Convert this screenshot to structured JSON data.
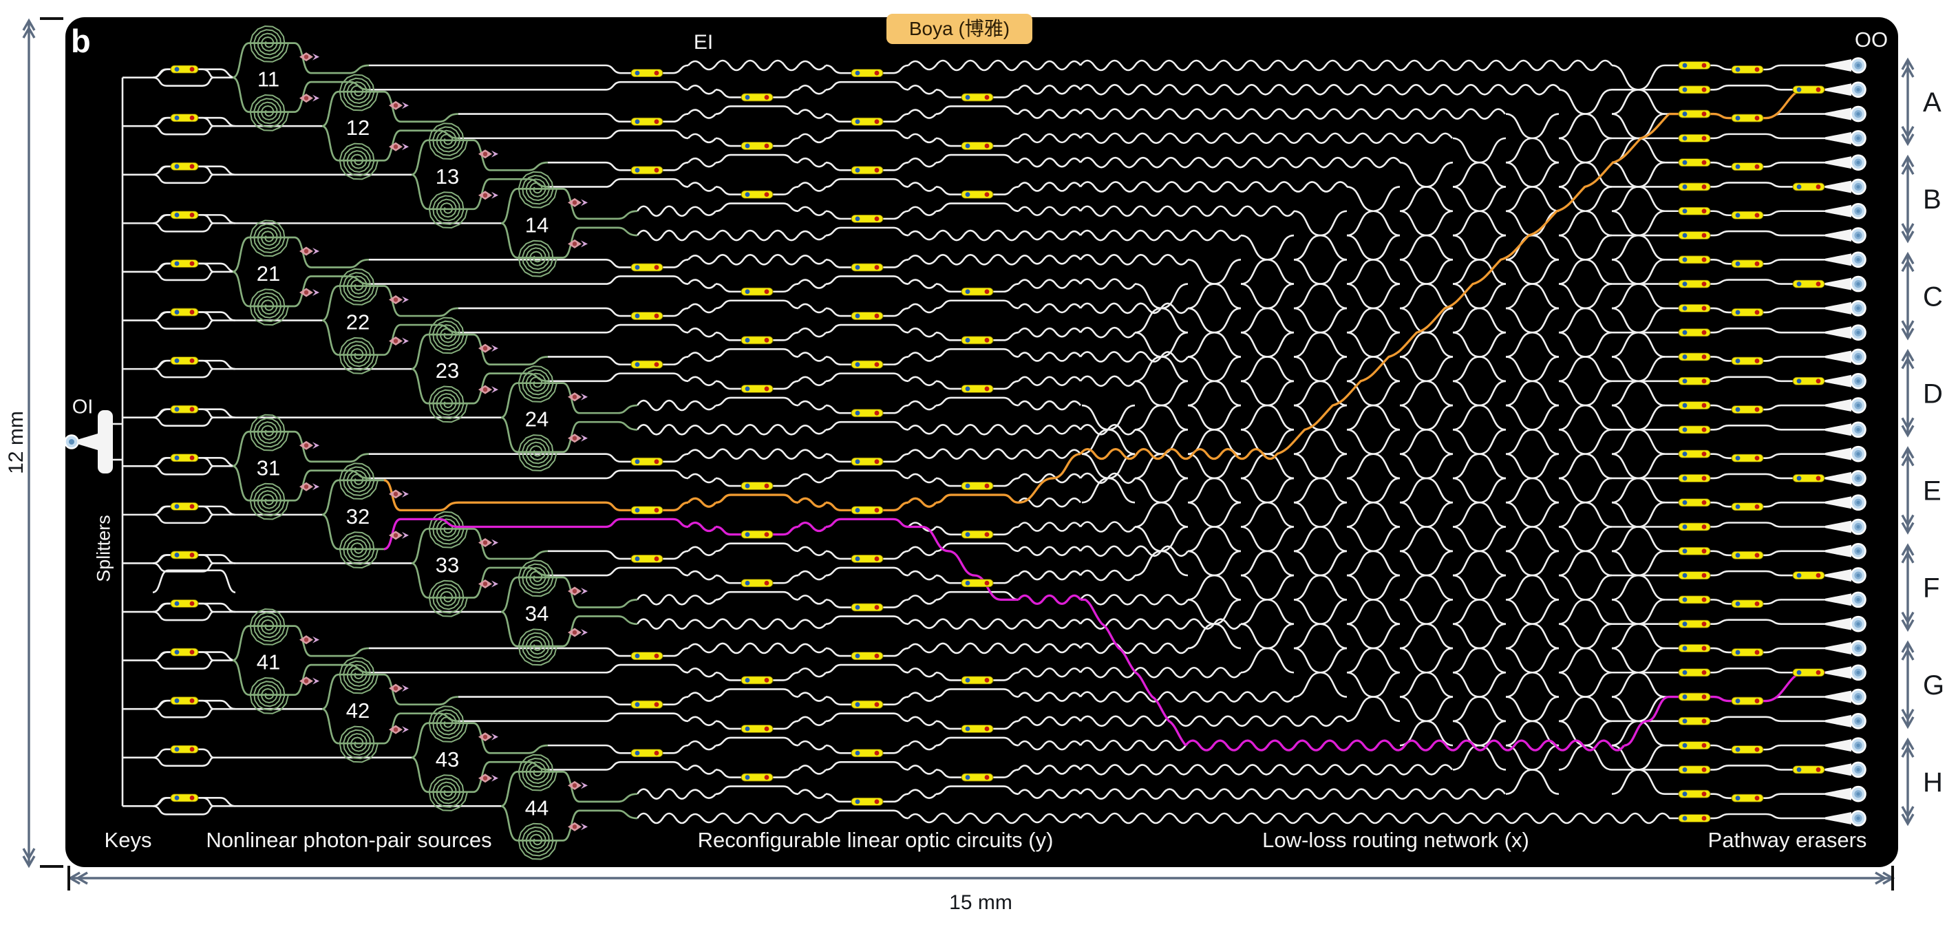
{
  "panel_label": "b",
  "chip_name_badge": "Boya (博雅)",
  "io_labels": {
    "optical_input": "OI",
    "electrical_input": "EI",
    "optical_output": "OO"
  },
  "dimensions": {
    "height_label": "12 mm",
    "width_label": "15 mm"
  },
  "section_labels": {
    "splitters": "Splitters",
    "keys": "Keys",
    "sources": "Nonlinear photon-pair sources",
    "linear_circuits": "Reconfigurable linear optic circuits (y)",
    "routing": "Low-loss routing network (x)",
    "erasers": "Pathway erasers"
  },
  "sources": {
    "numbers": [
      "11",
      "12",
      "13",
      "14",
      "21",
      "22",
      "23",
      "24",
      "31",
      "32",
      "33",
      "34",
      "41",
      "42",
      "43",
      "44"
    ]
  },
  "output_groups": [
    "A",
    "B",
    "C",
    "D",
    "E",
    "F",
    "G",
    "H"
  ],
  "counts": {
    "keys": 16,
    "photon_pair_sources": 16,
    "outputs": 32,
    "outputs_per_group": 4
  },
  "highlighted_paths": [
    {
      "name": "signal-path",
      "color": "#f09a30",
      "from_source": "32",
      "to_output_group": "A"
    },
    {
      "name": "idler-path",
      "color": "#de1ed6",
      "from_source": "32",
      "to_output_group": "G"
    }
  ],
  "colors": {
    "page_bg": "#ffffff",
    "panel_bg": "#000000",
    "waveguide": "#f0f0f0",
    "source_green": "#85ad7c",
    "phase_shifter_yellow": "#f4e90a",
    "phase_shifter_edge": "#7a6a00",
    "contact_blue": "#1f5fae",
    "contact_red": "#c41b0e",
    "photon_icon_pink": "#d99ba4",
    "photon_icon_core": "#a34045",
    "photon_arrow_violet": "#d8a8dc",
    "path_orange": "#f09a30",
    "path_magenta": "#de1ed6",
    "dimension_slate": "#5c6b80",
    "tick_black": "#111111",
    "badge_bg": "#f6c56d",
    "output_port_fill": "#c3dcf0",
    "output_port_inner": "#85afd3",
    "output_port_core": "#5d8fba"
  }
}
